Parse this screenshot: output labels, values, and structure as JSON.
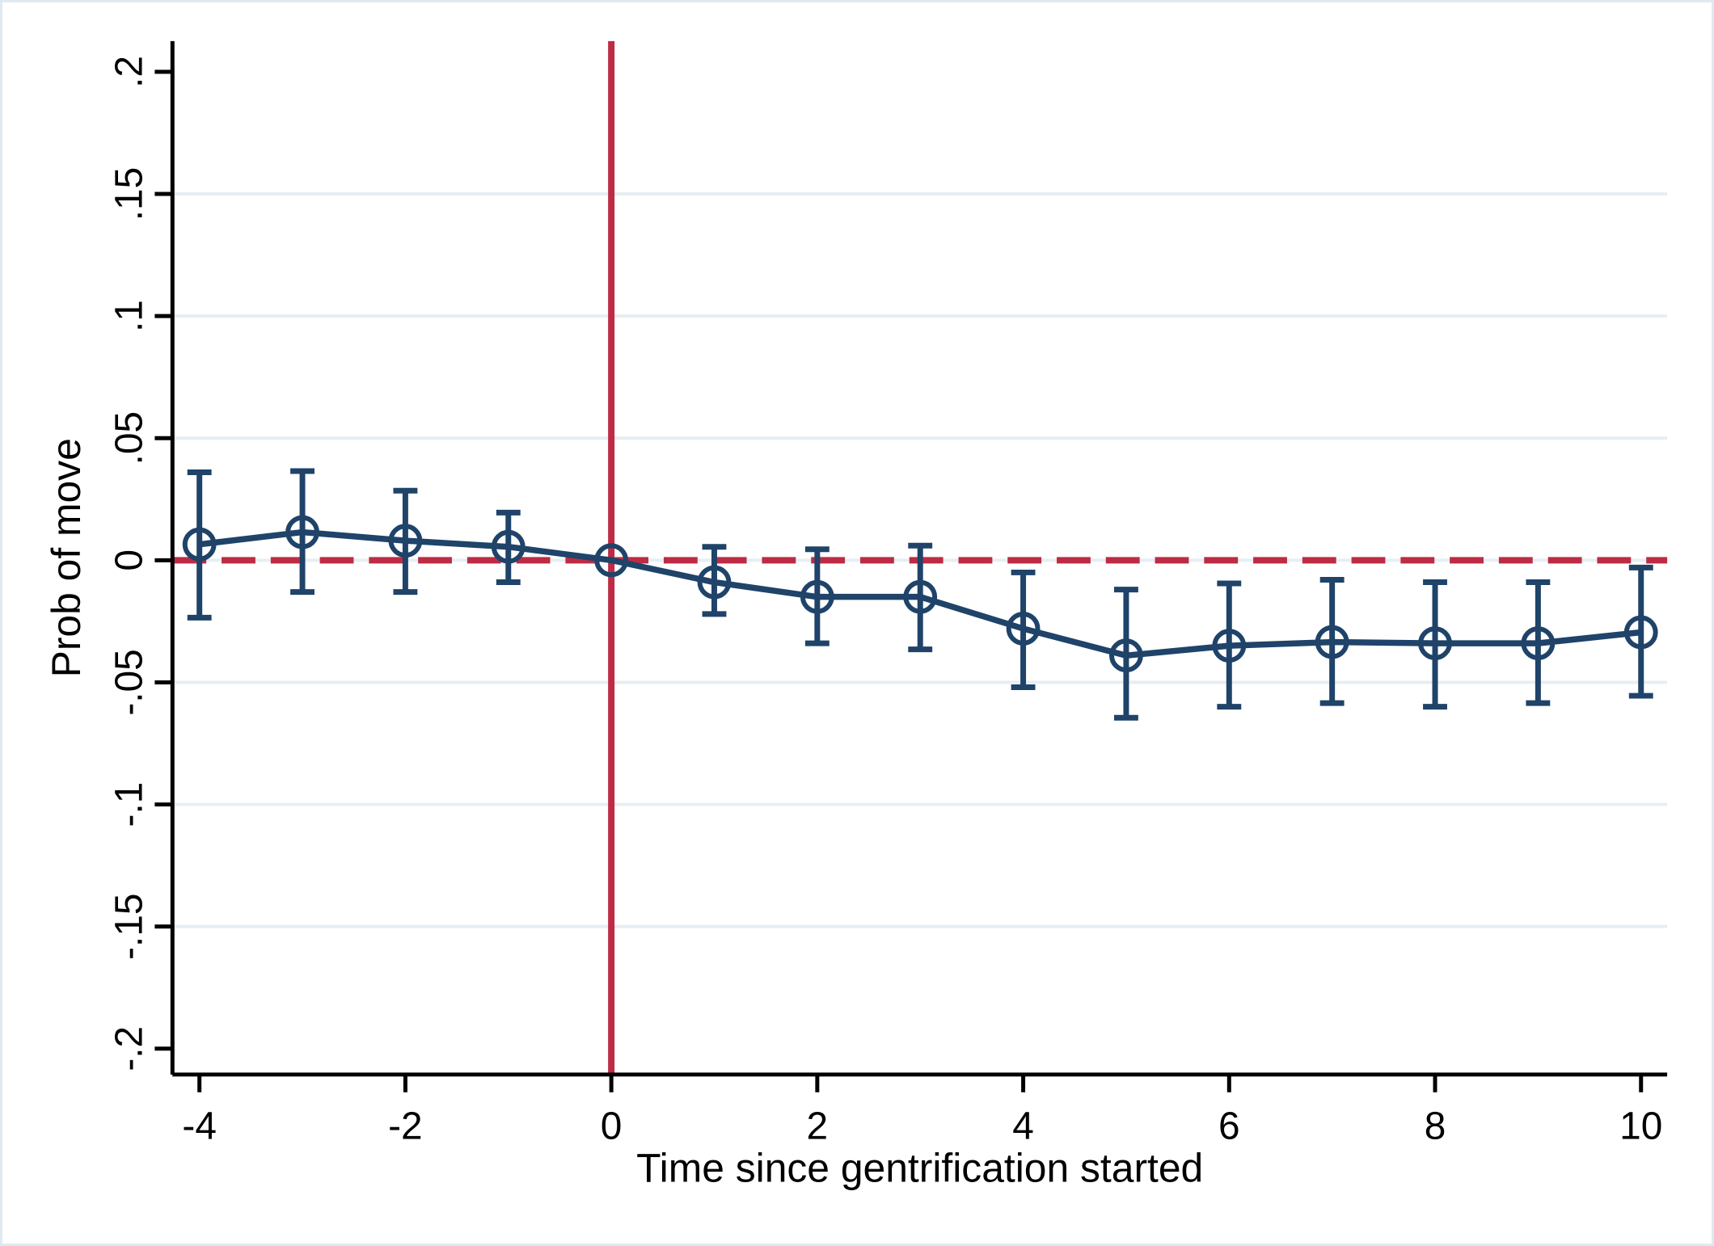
{
  "figure": {
    "background": "#ffffff",
    "border_color": "#dfeaf0",
    "navy": "#1f4369",
    "red": "#bd2c44",
    "grid_color": "#e7eef3",
    "axis_color": "#000000"
  },
  "chart_data": {
    "type": "line",
    "title": "",
    "xlabel": "Time since gentrification started",
    "ylabel": "Prob of move",
    "grid": true,
    "legend": false,
    "x_range": [
      -4.262,
      10.254
    ],
    "y_range": [
      -0.2106,
      0.2126
    ],
    "vline_x": 0,
    "hline_y": 0,
    "x": [
      -4,
      -3,
      -2,
      -1,
      0,
      1,
      2,
      3,
      4,
      5,
      6,
      7,
      8,
      9,
      10
    ],
    "series": [
      {
        "name": "Prob of move",
        "marker": "circle",
        "values": [
          0.0065,
          0.0115,
          0.008,
          0.0055,
          0,
          -0.009,
          -0.015,
          -0.015,
          -0.028,
          -0.039,
          -0.035,
          -0.0335,
          -0.034,
          -0.034,
          -0.0295
        ],
        "ci_low": [
          -0.0235,
          -0.013,
          -0.013,
          -0.009,
          null,
          -0.022,
          -0.034,
          -0.0365,
          -0.052,
          -0.0645,
          -0.06,
          -0.0585,
          -0.06,
          -0.0585,
          -0.0555
        ],
        "ci_high": [
          0.036,
          0.0365,
          0.0285,
          0.0195,
          null,
          0.0055,
          0.0045,
          0.006,
          -0.005,
          -0.012,
          -0.0095,
          -0.008,
          -0.009,
          -0.009,
          -0.003
        ]
      }
    ],
    "xticks": {
      "values": [
        -4,
        -2,
        0,
        2,
        4,
        6,
        8,
        10
      ],
      "labels": [
        "-4",
        "-2",
        "0",
        "2",
        "4",
        "6",
        "8",
        "10"
      ]
    },
    "yticks": {
      "values": [
        0.2,
        0.15,
        0.1,
        0.05,
        0,
        -0.05,
        -0.1,
        -0.15,
        -0.2
      ],
      "labels": [
        ".2",
        ".15",
        ".1",
        ".05",
        "0",
        "-.05",
        "-.1",
        "-.15",
        "-.2"
      ]
    },
    "gridline_values": [
      0.15,
      0.1,
      0.05,
      0,
      -0.05,
      -0.1,
      -0.15
    ]
  }
}
